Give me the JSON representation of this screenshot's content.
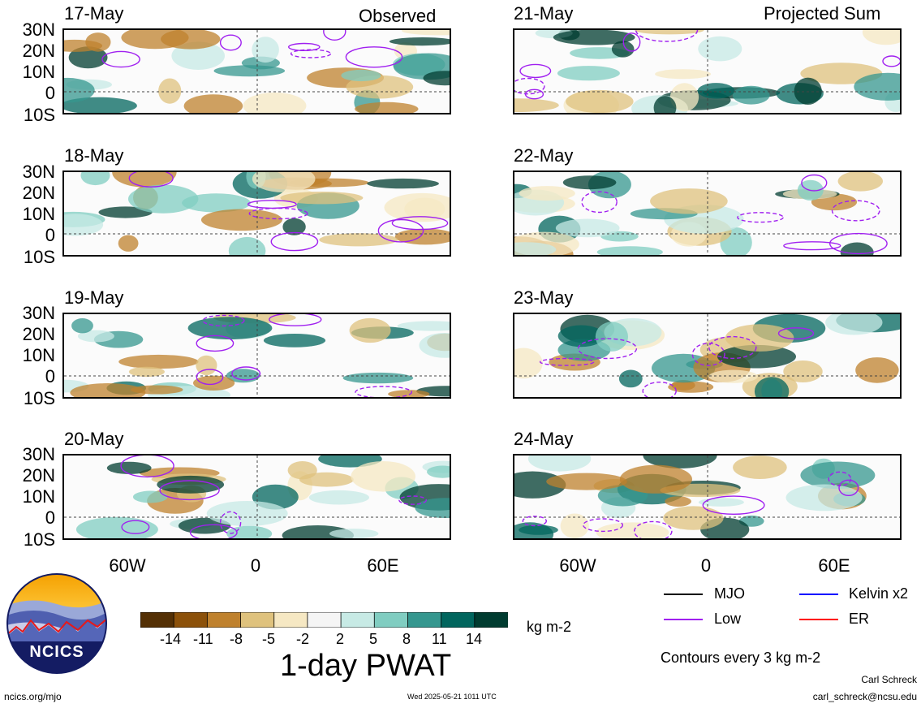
{
  "columns": [
    {
      "label": "Observed",
      "panels": [
        "17-May",
        "18-May",
        "19-May",
        "20-May"
      ]
    },
    {
      "label": "Projected Sum",
      "panels": [
        "21-May",
        "22-May",
        "23-May",
        "24-May"
      ]
    }
  ],
  "lat_labels": [
    "30N",
    "20N",
    "10N",
    "0",
    "10S"
  ],
  "lon_labels": [
    "60W",
    "0",
    "60E"
  ],
  "colorbar": {
    "tick_labels": [
      "-14",
      "-11",
      "-8",
      "-5",
      "-2",
      "2",
      "5",
      "8",
      "11",
      "14"
    ],
    "colors": [
      "#543005",
      "#8c510a",
      "#bf812d",
      "#dfc27d",
      "#f6e8c3",
      "#f5f5f5",
      "#c7eae5",
      "#80cdc1",
      "#35978f",
      "#01665e",
      "#003c30"
    ],
    "units": "kg m-2",
    "title": "1-day PWAT"
  },
  "legend": {
    "items": [
      {
        "label": "MJO",
        "color": "#000000"
      },
      {
        "label": "Kelvin x2",
        "color": "#0000ff"
      },
      {
        "label": "Low",
        "color": "#a020f0"
      },
      {
        "label": "ER",
        "color": "#ff0000"
      }
    ],
    "note": "Contours every 3 kg m-2"
  },
  "logo_text": "NCICS",
  "footer": {
    "url": "ncics.org/mjo",
    "timestamp": "Wed 2025-05-21 1011 UTC",
    "author": "Carl Schreck",
    "email": "carl_schreck@ncsu.edu"
  }
}
